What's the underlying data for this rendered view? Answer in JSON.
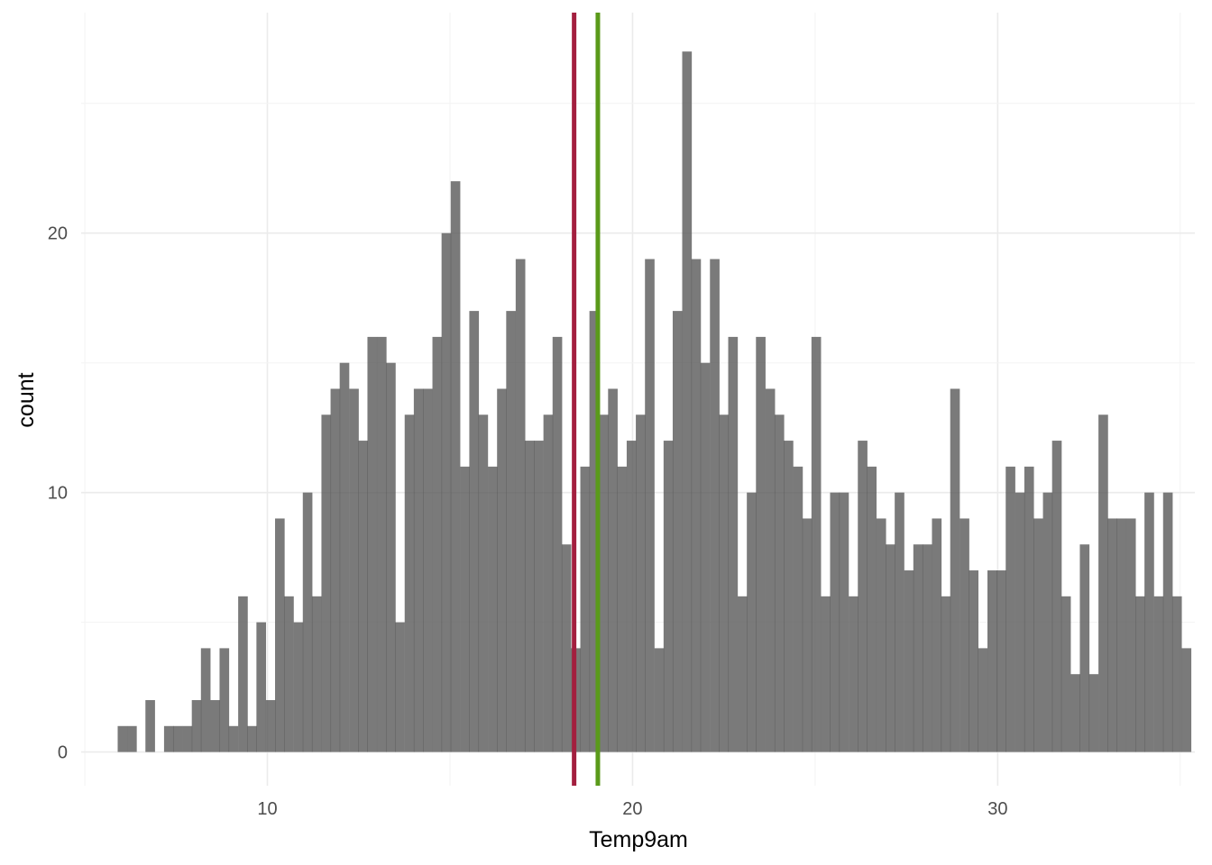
{
  "chart_data": {
    "type": "bar",
    "subtype": "histogram",
    "xlabel": "Temp9am",
    "ylabel": "count",
    "xlim": [
      4.9,
      35.4
    ],
    "ylim": [
      -1.3,
      28.5
    ],
    "bin_width": 0.253,
    "x_ticks": [
      10,
      20,
      30
    ],
    "x_tick_labels": [
      "10",
      "20",
      "30"
    ],
    "y_ticks": [
      0,
      10,
      20
    ],
    "y_tick_labels": [
      "0",
      "10",
      "20"
    ],
    "bar_color": "#595959",
    "grid": true,
    "bins": [
      {
        "x0": 5.9,
        "count": 1
      },
      {
        "x0": 6.16,
        "count": 1
      },
      {
        "x0": 6.41,
        "count": 0
      },
      {
        "x0": 6.66,
        "count": 2
      },
      {
        "x0": 6.92,
        "count": 0
      },
      {
        "x0": 7.17,
        "count": 1
      },
      {
        "x0": 7.42,
        "count": 1
      },
      {
        "x0": 7.68,
        "count": 1
      },
      {
        "x0": 7.93,
        "count": 2
      },
      {
        "x0": 8.18,
        "count": 4
      },
      {
        "x0": 8.44,
        "count": 2
      },
      {
        "x0": 8.69,
        "count": 4
      },
      {
        "x0": 8.94,
        "count": 1
      },
      {
        "x0": 9.2,
        "count": 6
      },
      {
        "x0": 9.45,
        "count": 1
      },
      {
        "x0": 9.7,
        "count": 5
      },
      {
        "x0": 9.96,
        "count": 2
      },
      {
        "x0": 10.21,
        "count": 9
      },
      {
        "x0": 10.46,
        "count": 6
      },
      {
        "x0": 10.72,
        "count": 5
      },
      {
        "x0": 10.97,
        "count": 10
      },
      {
        "x0": 11.22,
        "count": 6
      },
      {
        "x0": 11.48,
        "count": 13
      },
      {
        "x0": 11.73,
        "count": 14
      },
      {
        "x0": 11.98,
        "count": 15
      },
      {
        "x0": 12.24,
        "count": 14
      },
      {
        "x0": 12.49,
        "count": 12
      },
      {
        "x0": 12.74,
        "count": 16
      },
      {
        "x0": 13.0,
        "count": 16
      },
      {
        "x0": 13.25,
        "count": 15
      },
      {
        "x0": 13.5,
        "count": 5
      },
      {
        "x0": 13.76,
        "count": 13
      },
      {
        "x0": 14.01,
        "count": 14
      },
      {
        "x0": 14.26,
        "count": 14
      },
      {
        "x0": 14.52,
        "count": 16
      },
      {
        "x0": 14.77,
        "count": 20
      },
      {
        "x0": 15.02,
        "count": 22
      },
      {
        "x0": 15.28,
        "count": 11
      },
      {
        "x0": 15.53,
        "count": 17
      },
      {
        "x0": 15.78,
        "count": 13
      },
      {
        "x0": 16.04,
        "count": 11
      },
      {
        "x0": 16.29,
        "count": 14
      },
      {
        "x0": 16.54,
        "count": 17
      },
      {
        "x0": 16.8,
        "count": 19
      },
      {
        "x0": 17.05,
        "count": 12
      },
      {
        "x0": 17.3,
        "count": 12
      },
      {
        "x0": 17.56,
        "count": 13
      },
      {
        "x0": 17.81,
        "count": 16
      },
      {
        "x0": 18.06,
        "count": 8
      },
      {
        "x0": 18.32,
        "count": 4
      },
      {
        "x0": 18.57,
        "count": 11
      },
      {
        "x0": 18.82,
        "count": 17
      },
      {
        "x0": 19.08,
        "count": 13
      },
      {
        "x0": 19.33,
        "count": 14
      },
      {
        "x0": 19.58,
        "count": 11
      },
      {
        "x0": 19.84,
        "count": 12
      },
      {
        "x0": 20.09,
        "count": 13
      },
      {
        "x0": 20.34,
        "count": 19
      },
      {
        "x0": 20.6,
        "count": 4
      },
      {
        "x0": 20.85,
        "count": 12
      },
      {
        "x0": 21.1,
        "count": 17
      },
      {
        "x0": 21.36,
        "count": 27
      },
      {
        "x0": 21.61,
        "count": 19
      },
      {
        "x0": 21.86,
        "count": 15
      },
      {
        "x0": 22.12,
        "count": 19
      },
      {
        "x0": 22.37,
        "count": 13
      },
      {
        "x0": 22.62,
        "count": 16
      },
      {
        "x0": 22.88,
        "count": 6
      },
      {
        "x0": 23.13,
        "count": 10
      },
      {
        "x0": 23.38,
        "count": 16
      },
      {
        "x0": 23.64,
        "count": 14
      },
      {
        "x0": 23.89,
        "count": 13
      },
      {
        "x0": 24.14,
        "count": 12
      },
      {
        "x0": 24.4,
        "count": 11
      },
      {
        "x0": 24.65,
        "count": 9
      },
      {
        "x0": 24.9,
        "count": 16
      },
      {
        "x0": 25.16,
        "count": 6
      },
      {
        "x0": 25.41,
        "count": 10
      },
      {
        "x0": 25.66,
        "count": 10
      },
      {
        "x0": 25.92,
        "count": 6
      },
      {
        "x0": 26.17,
        "count": 12
      },
      {
        "x0": 26.42,
        "count": 11
      },
      {
        "x0": 26.68,
        "count": 9
      },
      {
        "x0": 26.93,
        "count": 8
      },
      {
        "x0": 27.18,
        "count": 10
      },
      {
        "x0": 27.44,
        "count": 7
      },
      {
        "x0": 27.69,
        "count": 8
      },
      {
        "x0": 27.94,
        "count": 8
      },
      {
        "x0": 28.2,
        "count": 9
      },
      {
        "x0": 28.45,
        "count": 6
      },
      {
        "x0": 28.7,
        "count": 14
      },
      {
        "x0": 28.96,
        "count": 9
      },
      {
        "x0": 29.21,
        "count": 7
      },
      {
        "x0": 29.46,
        "count": 4
      },
      {
        "x0": 29.72,
        "count": 7
      },
      {
        "x0": 29.97,
        "count": 7
      },
      {
        "x0": 30.22,
        "count": 11
      },
      {
        "x0": 30.48,
        "count": 10
      },
      {
        "x0": 30.73,
        "count": 11
      },
      {
        "x0": 30.98,
        "count": 9
      },
      {
        "x0": 31.24,
        "count": 10
      },
      {
        "x0": 31.49,
        "count": 12
      },
      {
        "x0": 31.74,
        "count": 6
      },
      {
        "x0": 32.0,
        "count": 3
      },
      {
        "x0": 32.25,
        "count": 8
      },
      {
        "x0": 32.5,
        "count": 3
      },
      {
        "x0": 32.76,
        "count": 13
      },
      {
        "x0": 33.01,
        "count": 9
      },
      {
        "x0": 33.26,
        "count": 9
      },
      {
        "x0": 33.52,
        "count": 9
      },
      {
        "x0": 33.77,
        "count": 6
      },
      {
        "x0": 34.02,
        "count": 10
      },
      {
        "x0": 34.28,
        "count": 6
      },
      {
        "x0": 34.53,
        "count": 10
      },
      {
        "x0": 34.78,
        "count": 6
      },
      {
        "x0": 35.04,
        "count": 4
      }
    ],
    "reference_lines": [
      {
        "x": 18.4,
        "color": "#a31f3f"
      },
      {
        "x": 19.05,
        "color": "#5a9a1a"
      }
    ]
  }
}
